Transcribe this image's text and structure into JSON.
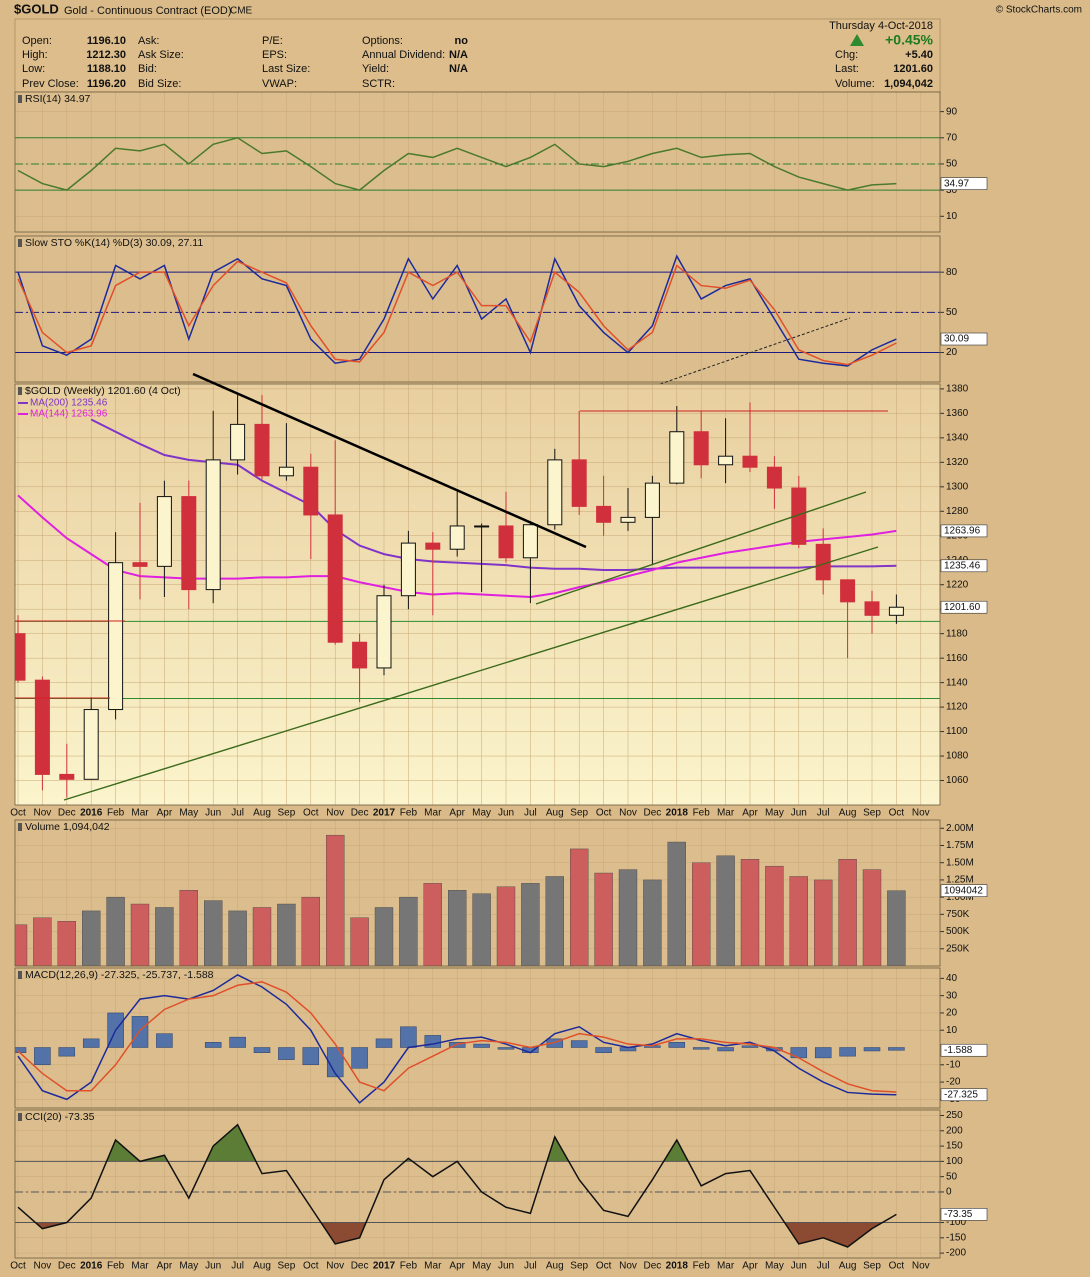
{
  "header": {
    "symbol": "$GOLD",
    "name": "Gold - Continuous Contract (EOD)",
    "exchange": "CME",
    "copyright": "© StockCharts.com",
    "date": "Thursday  4-Oct-2018",
    "change_pct": "+0.45%",
    "fields": [
      [
        {
          "label": "Open:",
          "value": "1196.10"
        },
        {
          "label": "High:",
          "value": "1212.30"
        },
        {
          "label": "Low:",
          "value": "1188.10"
        },
        {
          "label": "Prev Close:",
          "value": "1196.20"
        }
      ],
      [
        {
          "label": "Ask:"
        },
        {
          "label": "Ask Size:"
        },
        {
          "label": "Bid:"
        },
        {
          "label": "Bid Size:"
        }
      ],
      [
        {
          "label": "P/E:"
        },
        {
          "label": "EPS:"
        },
        {
          "label": "Last Size:"
        },
        {
          "label": "VWAP:"
        }
      ],
      [
        {
          "label": "Options:",
          "value": "no"
        },
        {
          "label": "Annual Dividend:",
          "value": "N/A"
        },
        {
          "label": "Yield:",
          "value": "N/A"
        },
        {
          "label": "SCTR:"
        }
      ]
    ],
    "right": [
      {
        "label": "Chg:",
        "value": "+5.40"
      },
      {
        "label": "Last:",
        "value": "1201.60"
      },
      {
        "label": "Volume:",
        "value": "1,094,042"
      }
    ]
  },
  "x_axis_labels": [
    "Oct",
    "Nov",
    "Dec",
    "2016",
    "Feb",
    "Mar",
    "Apr",
    "May",
    "Jun",
    "Jul",
    "Aug",
    "Sep",
    "Oct",
    "Nov",
    "Dec",
    "2017",
    "Feb",
    "Mar",
    "Apr",
    "May",
    "Jun",
    "Jul",
    "Aug",
    "Sep",
    "Oct",
    "Nov",
    "Dec",
    "2018",
    "Feb",
    "Mar",
    "Apr",
    "May",
    "Jun",
    "Jul",
    "Aug",
    "Sep",
    "Oct",
    "Nov"
  ],
  "chart_data": [
    {
      "type": "line",
      "title": "RSI(14) 34.97",
      "ylim": [
        -2,
        105
      ],
      "yticks": [
        10,
        30,
        50,
        70,
        90
      ],
      "hlines": [
        {
          "value": 70,
          "color": "#2e7d2e"
        },
        {
          "value": 50,
          "color": "#2e7d2e",
          "dash": true
        },
        {
          "value": 30,
          "color": "#2e7d2e"
        }
      ],
      "series": [
        {
          "color": "#4a7a2a",
          "last_label": "34.97",
          "values": [
            45,
            35,
            30,
            45,
            62,
            60,
            65,
            50,
            65,
            70,
            58,
            60,
            48,
            35,
            30,
            45,
            58,
            55,
            62,
            55,
            48,
            55,
            65,
            50,
            48,
            52,
            58,
            62,
            55,
            57,
            58,
            48,
            40,
            35,
            30,
            34,
            34.97
          ]
        }
      ]
    },
    {
      "type": "line",
      "title": "Slow STO %K(14) %D(3) 30.09, 27.11",
      "ylim": [
        -2,
        107
      ],
      "yticks": [
        20,
        50,
        80
      ],
      "hlines": [
        {
          "value": 80,
          "color": "#1a1a80"
        },
        {
          "value": 50,
          "color": "#1a1a80",
          "dash": true
        },
        {
          "value": 20,
          "color": "#1a1a80"
        }
      ],
      "series": [
        {
          "color": "#1c2a9c",
          "last_label": "30.09",
          "values": [
            80,
            25,
            18,
            30,
            85,
            75,
            85,
            30,
            80,
            90,
            75,
            70,
            30,
            12,
            15,
            45,
            90,
            60,
            85,
            45,
            60,
            20,
            90,
            55,
            35,
            20,
            40,
            92,
            60,
            70,
            75,
            45,
            15,
            12,
            10,
            22,
            30.09
          ]
        },
        {
          "color": "#e0502a",
          "values": [
            75,
            35,
            20,
            25,
            70,
            80,
            80,
            40,
            70,
            88,
            80,
            72,
            40,
            15,
            13,
            35,
            80,
            70,
            80,
            55,
            55,
            28,
            80,
            65,
            40,
            22,
            35,
            85,
            70,
            68,
            74,
            52,
            22,
            14,
            11,
            18,
            27.11
          ]
        }
      ]
    },
    {
      "type": "candlestick",
      "title": "$GOLD (Weekly) 1201.60 (4 Oct)",
      "ylim": [
        1040,
        1384
      ],
      "yticks": [
        1060,
        1080,
        1100,
        1120,
        1140,
        1160,
        1180,
        1200,
        1220,
        1240,
        1260,
        1280,
        1300,
        1320,
        1340,
        1360,
        1380
      ],
      "hlines": [
        {
          "value": 1190,
          "color": "#2e8a2e"
        },
        {
          "value": 1127,
          "color": "#2e8a2e"
        }
      ],
      "up_color": "#111111",
      "down_color": "#d0303c",
      "last_label": "1201.60",
      "open": [
        1180,
        1142,
        1065,
        1061,
        1118,
        1238,
        1235,
        1292,
        1216,
        1322,
        1351,
        1309,
        1316,
        1277,
        1173,
        1152,
        1211,
        1254,
        1249,
        1268,
        1268,
        1242,
        1269,
        1322,
        1284,
        1271,
        1275,
        1303,
        1345,
        1318,
        1325,
        1316,
        1299,
        1253,
        1224,
        1206,
        1195
      ],
      "high": [
        1195,
        1145,
        1090,
        1128,
        1263,
        1287,
        1305,
        1305,
        1362,
        1377,
        1375,
        1352,
        1327,
        1338,
        1180,
        1220,
        1264,
        1263,
        1296,
        1270,
        1296,
        1272,
        1331,
        1362,
        1309,
        1299,
        1309,
        1366,
        1362,
        1356,
        1369,
        1325,
        1309,
        1266,
        1224,
        1215,
        1212
      ],
      "low": [
        1140,
        1052,
        1046,
        1062,
        1110,
        1208,
        1210,
        1200,
        1205,
        1310,
        1306,
        1305,
        1241,
        1171,
        1124,
        1146,
        1200,
        1195,
        1243,
        1214,
        1238,
        1205,
        1265,
        1277,
        1260,
        1264,
        1236,
        1302,
        1307,
        1303,
        1312,
        1282,
        1250,
        1212,
        1160,
        1180,
        1188
      ],
      "close": [
        1142,
        1065,
        1061,
        1118,
        1238,
        1235,
        1292,
        1216,
        1322,
        1351,
        1309,
        1316,
        1277,
        1173,
        1152,
        1211,
        1254,
        1249,
        1268,
        1268,
        1242,
        1269,
        1322,
        1284,
        1271,
        1275,
        1303,
        1345,
        1318,
        1325,
        1316,
        1299,
        1253,
        1224,
        1206,
        1195,
        1201.6
      ],
      "series": [
        {
          "name": "MA(200) 1235.46",
          "color": "#8034c8",
          "last_label": "1235.46",
          "values": [
            null,
            null,
            null,
            1355,
            1345,
            1335,
            1326,
            1322,
            1320,
            1318,
            1305,
            1295,
            1285,
            1265,
            1252,
            1245,
            1241,
            1239,
            1238,
            1237,
            1236,
            1234,
            1233,
            1233,
            1232,
            1232,
            1233,
            1234,
            1234,
            1234,
            1234,
            1234,
            1234,
            1235,
            1235,
            1235,
            1235.46
          ]
        },
        {
          "name": "MA(144) 1263.96",
          "color": "#e020e0",
          "last_label": "1263.96",
          "values": [
            1293,
            1275,
            1258,
            1245,
            1232,
            1227,
            1226,
            1225,
            1225,
            1225,
            1226,
            1226,
            1227,
            1227,
            1222,
            1218,
            1214,
            1212,
            1213,
            1212,
            1211,
            1210,
            1213,
            1218,
            1222,
            1227,
            1232,
            1238,
            1242,
            1246,
            1249,
            1252,
            1255,
            1257,
            1259,
            1261,
            1263.96
          ]
        }
      ]
    },
    {
      "type": "bar",
      "title": "Volume 1,094,042",
      "ylim": [
        0,
        2120000
      ],
      "last_label": "1094042",
      "yticks": [
        {
          "value": 250000,
          "label": "250K"
        },
        {
          "value": 500000,
          "label": "500K"
        },
        {
          "value": 750000,
          "label": "750K"
        },
        {
          "value": 1000000,
          "label": "1.00M"
        },
        {
          "value": 1250000,
          "label": "1.25M"
        },
        {
          "value": 1500000,
          "label": "1.50M"
        },
        {
          "value": 1750000,
          "label": "1.75M"
        },
        {
          "value": 2000000,
          "label": "2.00M"
        }
      ],
      "up_color": "#767676",
      "down_color": "#cc5e5e",
      "values": [
        600000,
        700000,
        650000,
        800000,
        1000000,
        900000,
        850000,
        1100000,
        950000,
        800000,
        850000,
        900000,
        1000000,
        1900000,
        700000,
        850000,
        1000000,
        1200000,
        1100000,
        1050000,
        1150000,
        1200000,
        1300000,
        1700000,
        1350000,
        1400000,
        1250000,
        1800000,
        1500000,
        1600000,
        1550000,
        1450000,
        1300000,
        1250000,
        1550000,
        1400000,
        1094042
      ]
    },
    {
      "type": "line",
      "title": "MACD(12,26,9) -27.325, -25.737, -1.588",
      "ylim": [
        -35,
        46
      ],
      "yticks": [
        -30,
        -20,
        -10,
        10,
        20,
        30,
        40
      ],
      "series": [
        {
          "style": "bar",
          "color": "#5272a8",
          "last_label": "-1.588",
          "values": [
            -3,
            -10,
            -5,
            5,
            20,
            18,
            8,
            0,
            3,
            6,
            -3,
            -7,
            -10,
            -17,
            -12,
            5,
            12,
            7,
            3,
            2,
            -1,
            -3,
            5,
            4,
            -3,
            -2,
            1,
            3,
            -1,
            -2,
            1,
            -2,
            -6,
            -6,
            -5,
            -2,
            -1.588
          ]
        },
        {
          "color": "#1c2a9c",
          "last_label": "-27.325",
          "values": [
            -5,
            -25,
            -30,
            -20,
            10,
            28,
            30,
            28,
            33,
            42,
            35,
            25,
            10,
            -15,
            -32,
            -20,
            0,
            2,
            5,
            6,
            2,
            -3,
            8,
            12,
            3,
            0,
            2,
            8,
            4,
            1,
            3,
            -2,
            -12,
            -20,
            -26,
            -27,
            -27.325
          ]
        },
        {
          "color": "#e0502a",
          "values": [
            -2,
            -15,
            -25,
            -25,
            -10,
            10,
            22,
            28,
            30,
            36,
            38,
            32,
            20,
            2,
            -20,
            -25,
            -12,
            -5,
            2,
            4,
            3,
            0,
            3,
            8,
            6,
            2,
            1,
            5,
            5,
            3,
            2,
            0,
            -6,
            -14,
            -21,
            -25,
            -25.737
          ]
        }
      ]
    },
    {
      "type": "line",
      "title": "CCI(20) -73.35",
      "ylim": [
        -216,
        268
      ],
      "yticks": [
        -200,
        -150,
        -100,
        0,
        50,
        100,
        150,
        200,
        250
      ],
      "hlines": [
        {
          "value": 100,
          "color": "#555555",
          "fill": "#5c7d36"
        },
        {
          "value": 0,
          "color": "#555555",
          "dash": true
        },
        {
          "value": -100,
          "color": "#555555",
          "fill": "#8b4a32"
        }
      ],
      "series": [
        {
          "color": "#111111",
          "last_label": "-73.35",
          "values": [
            -50,
            -120,
            -100,
            -20,
            170,
            100,
            120,
            -20,
            150,
            220,
            60,
            70,
            -50,
            -170,
            -150,
            40,
            110,
            50,
            100,
            0,
            -50,
            -70,
            180,
            40,
            -60,
            -80,
            40,
            170,
            20,
            60,
            70,
            -50,
            -170,
            -150,
            -180,
            -120,
            -73.35
          ]
        }
      ]
    }
  ]
}
